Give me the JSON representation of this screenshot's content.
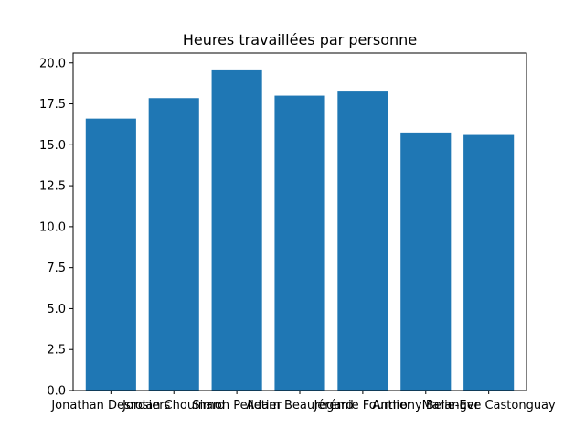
{
  "chart_data": {
    "type": "bar",
    "title": "Heures travaillées par personne",
    "xlabel": "",
    "ylabel": "",
    "categories": [
      "Jonathan Desrosiers",
      "Jordan Chouinard",
      "Simon Pelletier",
      "Adam Beauregard",
      "Jérémie Fournier",
      "Anthony Belanger",
      "Marie-Eve Castonguay"
    ],
    "values": [
      16.6,
      17.85,
      19.6,
      18.0,
      18.25,
      15.75,
      15.6
    ],
    "ylim": [
      0,
      20.6
    ],
    "yticks": [
      0.0,
      2.5,
      5.0,
      7.5,
      10.0,
      12.5,
      15.0,
      17.5,
      20.0
    ],
    "grid": false,
    "bar_color": "#1f77b4"
  }
}
